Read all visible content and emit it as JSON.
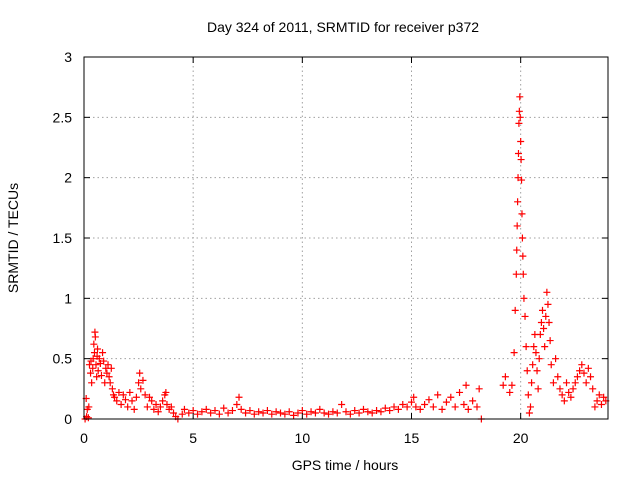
{
  "chart_data": {
    "type": "scatter",
    "title": "Day 324 of 2011, SRMTID for receiver p372",
    "xlabel": "GPS time / hours",
    "ylabel": "SRMTID / TECUs",
    "xlim": [
      0,
      24
    ],
    "ylim": [
      0,
      3
    ],
    "xticks": [
      0,
      5,
      10,
      15,
      20
    ],
    "xtick_labels": [
      "0",
      "5",
      "10",
      "15",
      "20"
    ],
    "yticks": [
      0,
      0.5,
      1,
      1.5,
      2,
      2.5,
      3
    ],
    "ytick_labels": [
      "0",
      "0.5",
      "1",
      "1.5",
      "2",
      "2.5",
      "3"
    ],
    "grid": true,
    "marker": "+",
    "color": "#ff0000",
    "series": [
      {
        "name": "SRMTID",
        "points": [
          [
            0.05,
            0.0
          ],
          [
            0.1,
            0.17
          ],
          [
            0.12,
            0.02
          ],
          [
            0.15,
            0.08
          ],
          [
            0.2,
            0.01
          ],
          [
            0.22,
            0.1
          ],
          [
            0.25,
            0.45
          ],
          [
            0.3,
            0.38
          ],
          [
            0.32,
            0.48
          ],
          [
            0.35,
            0.3
          ],
          [
            0.4,
            0.42
          ],
          [
            0.42,
            0.5
          ],
          [
            0.45,
            0.62
          ],
          [
            0.48,
            0.55
          ],
          [
            0.5,
            0.72
          ],
          [
            0.52,
            0.68
          ],
          [
            0.55,
            0.45
          ],
          [
            0.58,
            0.35
          ],
          [
            0.6,
            0.52
          ],
          [
            0.62,
            0.58
          ],
          [
            0.65,
            0.4
          ],
          [
            0.7,
            0.5
          ],
          [
            0.75,
            0.46
          ],
          [
            0.8,
            0.36
          ],
          [
            0.85,
            0.55
          ],
          [
            0.9,
            0.48
          ],
          [
            0.95,
            0.3
          ],
          [
            1.0,
            0.42
          ],
          [
            1.05,
            0.38
          ],
          [
            1.1,
            0.45
          ],
          [
            1.15,
            0.35
          ],
          [
            1.2,
            0.3
          ],
          [
            1.25,
            0.42
          ],
          [
            1.3,
            0.25
          ],
          [
            1.35,
            0.2
          ],
          [
            1.4,
            0.18
          ],
          [
            1.5,
            0.15
          ],
          [
            1.6,
            0.22
          ],
          [
            1.7,
            0.12
          ],
          [
            1.8,
            0.2
          ],
          [
            1.9,
            0.16
          ],
          [
            2.0,
            0.1
          ],
          [
            2.1,
            0.22
          ],
          [
            2.2,
            0.15
          ],
          [
            2.3,
            0.08
          ],
          [
            2.4,
            0.18
          ],
          [
            2.5,
            0.3
          ],
          [
            2.55,
            0.38
          ],
          [
            2.6,
            0.25
          ],
          [
            2.7,
            0.32
          ],
          [
            2.8,
            0.2
          ],
          [
            2.9,
            0.1
          ],
          [
            3.0,
            0.18
          ],
          [
            3.1,
            0.15
          ],
          [
            3.2,
            0.08
          ],
          [
            3.3,
            0.12
          ],
          [
            3.4,
            0.06
          ],
          [
            3.5,
            0.1
          ],
          [
            3.6,
            0.15
          ],
          [
            3.7,
            0.2
          ],
          [
            3.75,
            0.22
          ],
          [
            3.8,
            0.12
          ],
          [
            3.9,
            0.08
          ],
          [
            4.0,
            0.1
          ],
          [
            4.1,
            0.05
          ],
          [
            4.2,
            0.02
          ],
          [
            4.3,
            0.0
          ],
          [
            4.5,
            0.04
          ],
          [
            4.6,
            0.08
          ],
          [
            4.8,
            0.05
          ],
          [
            5.0,
            0.07
          ],
          [
            5.2,
            0.04
          ],
          [
            5.4,
            0.06
          ],
          [
            5.6,
            0.08
          ],
          [
            5.8,
            0.05
          ],
          [
            6.0,
            0.07
          ],
          [
            6.2,
            0.04
          ],
          [
            6.4,
            0.09
          ],
          [
            6.6,
            0.05
          ],
          [
            6.8,
            0.07
          ],
          [
            7.0,
            0.12
          ],
          [
            7.1,
            0.18
          ],
          [
            7.2,
            0.08
          ],
          [
            7.4,
            0.05
          ],
          [
            7.6,
            0.07
          ],
          [
            7.8,
            0.04
          ],
          [
            8.0,
            0.06
          ],
          [
            8.2,
            0.05
          ],
          [
            8.4,
            0.07
          ],
          [
            8.6,
            0.04
          ],
          [
            8.8,
            0.06
          ],
          [
            9.0,
            0.05
          ],
          [
            9.2,
            0.04
          ],
          [
            9.4,
            0.06
          ],
          [
            9.6,
            0.03
          ],
          [
            9.8,
            0.05
          ],
          [
            10.0,
            0.07
          ],
          [
            10.2,
            0.04
          ],
          [
            10.4,
            0.06
          ],
          [
            10.6,
            0.05
          ],
          [
            10.8,
            0.08
          ],
          [
            11.0,
            0.05
          ],
          [
            11.2,
            0.04
          ],
          [
            11.4,
            0.06
          ],
          [
            11.6,
            0.05
          ],
          [
            11.8,
            0.12
          ],
          [
            12.0,
            0.06
          ],
          [
            12.2,
            0.04
          ],
          [
            12.4,
            0.07
          ],
          [
            12.6,
            0.05
          ],
          [
            12.8,
            0.08
          ],
          [
            13.0,
            0.06
          ],
          [
            13.2,
            0.05
          ],
          [
            13.4,
            0.07
          ],
          [
            13.6,
            0.06
          ],
          [
            13.8,
            0.09
          ],
          [
            14.0,
            0.07
          ],
          [
            14.2,
            0.1
          ],
          [
            14.4,
            0.08
          ],
          [
            14.6,
            0.12
          ],
          [
            14.8,
            0.1
          ],
          [
            15.0,
            0.14
          ],
          [
            15.1,
            0.18
          ],
          [
            15.2,
            0.1
          ],
          [
            15.4,
            0.08
          ],
          [
            15.6,
            0.12
          ],
          [
            15.8,
            0.16
          ],
          [
            16.0,
            0.1
          ],
          [
            16.2,
            0.2
          ],
          [
            16.4,
            0.08
          ],
          [
            16.6,
            0.14
          ],
          [
            16.8,
            0.18
          ],
          [
            17.0,
            0.1
          ],
          [
            17.2,
            0.22
          ],
          [
            17.4,
            0.12
          ],
          [
            17.5,
            0.28
          ],
          [
            17.6,
            0.08
          ],
          [
            17.8,
            0.15
          ],
          [
            18.0,
            0.1
          ],
          [
            18.1,
            0.25
          ],
          [
            18.2,
            0.0
          ],
          [
            19.2,
            0.28
          ],
          [
            19.3,
            0.35
          ],
          [
            19.5,
            0.22
          ],
          [
            19.6,
            0.28
          ],
          [
            19.7,
            0.55
          ],
          [
            19.75,
            0.9
          ],
          [
            19.8,
            1.2
          ],
          [
            19.82,
            1.4
          ],
          [
            19.84,
            1.6
          ],
          [
            19.86,
            1.8
          ],
          [
            19.88,
            2.0
          ],
          [
            19.9,
            2.2
          ],
          [
            19.92,
            2.45
          ],
          [
            19.94,
            2.55
          ],
          [
            19.96,
            2.67
          ],
          [
            19.98,
            2.5
          ],
          [
            20.0,
            2.3
          ],
          [
            20.02,
            2.15
          ],
          [
            20.04,
            1.98
          ],
          [
            20.06,
            1.7
          ],
          [
            20.08,
            1.5
          ],
          [
            20.1,
            1.35
          ],
          [
            20.12,
            1.2
          ],
          [
            20.15,
            1.0
          ],
          [
            20.2,
            0.85
          ],
          [
            20.25,
            0.6
          ],
          [
            20.3,
            0.4
          ],
          [
            20.35,
            0.2
          ],
          [
            20.4,
            0.05
          ],
          [
            20.45,
            0.1
          ],
          [
            20.5,
            0.3
          ],
          [
            20.55,
            0.45
          ],
          [
            20.6,
            0.6
          ],
          [
            20.65,
            0.7
          ],
          [
            20.7,
            0.55
          ],
          [
            20.75,
            0.4
          ],
          [
            20.8,
            0.25
          ],
          [
            20.85,
            0.5
          ],
          [
            20.9,
            0.7
          ],
          [
            20.95,
            0.8
          ],
          [
            21.0,
            0.9
          ],
          [
            21.05,
            0.75
          ],
          [
            21.1,
            0.6
          ],
          [
            21.15,
            0.85
          ],
          [
            21.2,
            1.05
          ],
          [
            21.25,
            0.95
          ],
          [
            21.3,
            0.8
          ],
          [
            21.35,
            0.65
          ],
          [
            21.4,
            0.45
          ],
          [
            21.5,
            0.3
          ],
          [
            21.6,
            0.5
          ],
          [
            21.7,
            0.35
          ],
          [
            21.8,
            0.25
          ],
          [
            21.9,
            0.2
          ],
          [
            22.0,
            0.15
          ],
          [
            22.1,
            0.3
          ],
          [
            22.2,
            0.22
          ],
          [
            22.3,
            0.18
          ],
          [
            22.4,
            0.25
          ],
          [
            22.5,
            0.3
          ],
          [
            22.6,
            0.35
          ],
          [
            22.7,
            0.4
          ],
          [
            22.8,
            0.45
          ],
          [
            22.9,
            0.38
          ],
          [
            23.0,
            0.3
          ],
          [
            23.1,
            0.42
          ],
          [
            23.2,
            0.35
          ],
          [
            23.3,
            0.25
          ],
          [
            23.4,
            0.1
          ],
          [
            23.5,
            0.15
          ],
          [
            23.6,
            0.2
          ],
          [
            23.7,
            0.12
          ],
          [
            23.8,
            0.18
          ],
          [
            23.9,
            0.15
          ]
        ]
      }
    ]
  }
}
